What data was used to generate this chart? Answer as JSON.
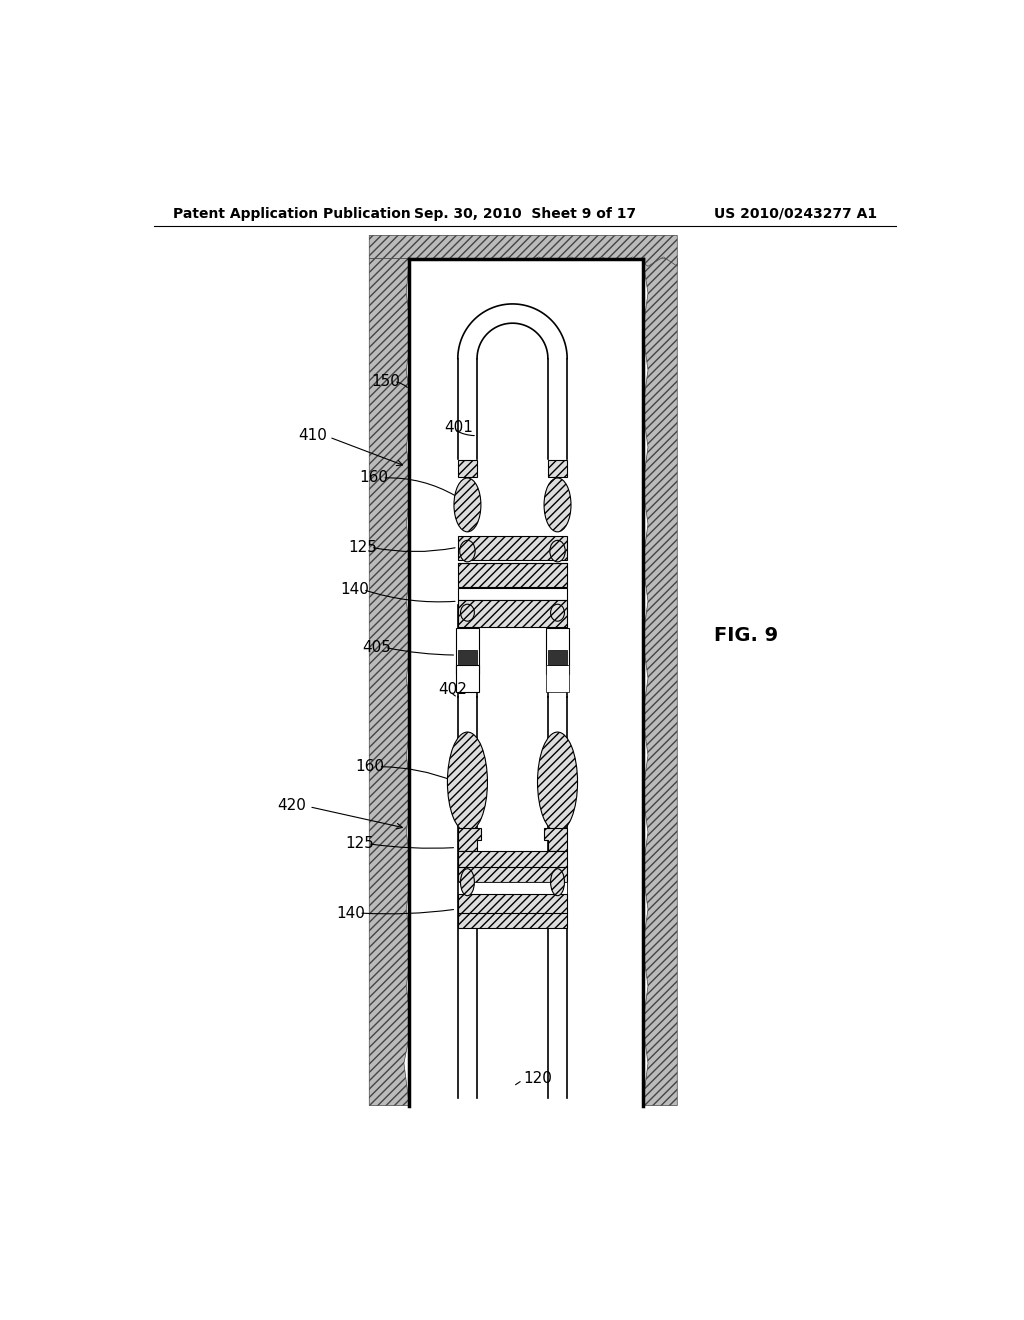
{
  "header_left": "Patent Application Publication",
  "header_center": "Sep. 30, 2010  Sheet 9 of 17",
  "header_right": "US 2010/0243277 A1",
  "fig_label": "FIG. 9",
  "bg_color": "#ffffff",
  "lw_casing": 2.5,
  "lw_tube": 1.2,
  "lw_thin": 0.8,
  "label_fontsize": 11,
  "header_fontsize": 10,
  "figlabel_fontsize": 14,
  "rock_fc": "#bbbbbb",
  "packer_fc": "#dddddd"
}
